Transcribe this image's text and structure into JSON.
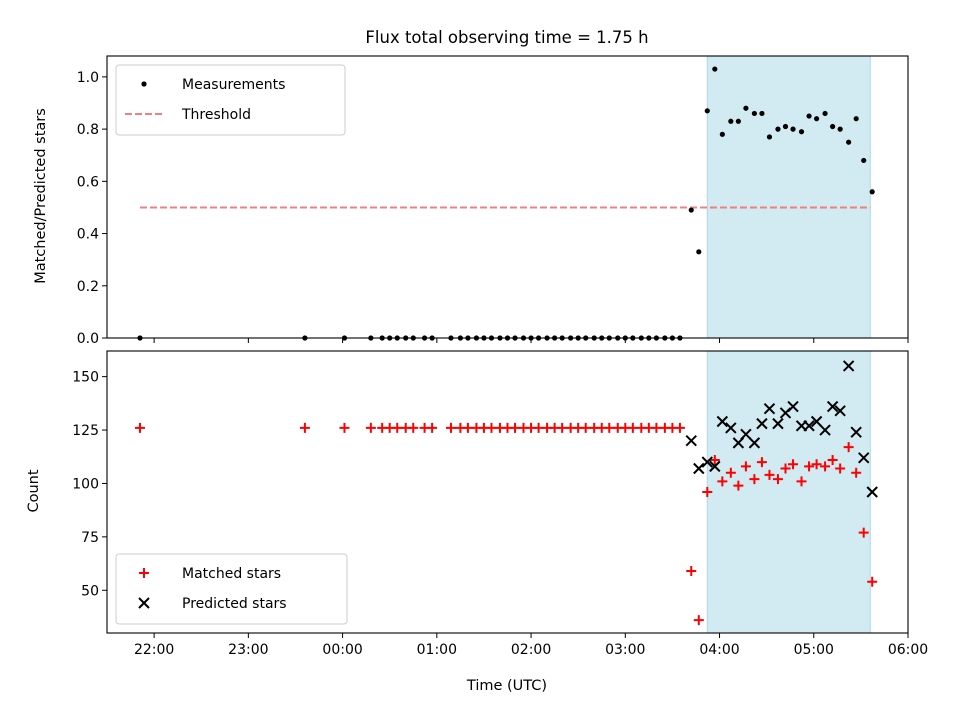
{
  "chart_data": {
    "title": "Flux total observing time = 1.75 h",
    "x_axis": {
      "label": "Time (UTC)",
      "range_hours": [
        -2.5,
        6.0
      ],
      "ticks": [
        {
          "value": -2,
          "label": "22:00"
        },
        {
          "value": -1,
          "label": "23:00"
        },
        {
          "value": 0,
          "label": "00:00"
        },
        {
          "value": 1,
          "label": "01:00"
        },
        {
          "value": 2,
          "label": "02:00"
        },
        {
          "value": 3,
          "label": "03:00"
        },
        {
          "value": 4,
          "label": "04:00"
        },
        {
          "value": 5,
          "label": "05:00"
        },
        {
          "value": 6,
          "label": "06:00"
        }
      ]
    },
    "observing_window": {
      "start": 3.87,
      "end": 5.6,
      "color": "#add8e6"
    },
    "panels": [
      {
        "type": "scatter",
        "ylabel": "Matched/Predicted stars",
        "ylim": [
          0,
          1.08
        ],
        "yticks": [
          0.0,
          0.2,
          0.4,
          0.6,
          0.8,
          1.0
        ],
        "ytick_labels": [
          "0.0",
          "0.2",
          "0.4",
          "0.6",
          "0.8",
          "1.0"
        ],
        "legend": {
          "placement": "top-left",
          "entries": [
            "Measurements",
            "Threshold"
          ]
        },
        "threshold": {
          "name": "Threshold",
          "value": 0.5,
          "x_range": [
            -2.15,
            5.6
          ],
          "color": "#f08080"
        },
        "series": [
          {
            "name": "Measurements",
            "color": "#000000",
            "marker": "dot",
            "points": [
              [
                -2.15,
                0.0
              ],
              [
                -0.4,
                0.0
              ],
              [
                0.02,
                0.0
              ],
              [
                0.3,
                0.0
              ],
              [
                0.42,
                0.0
              ],
              [
                0.5,
                0.0
              ],
              [
                0.58,
                0.0
              ],
              [
                0.67,
                0.0
              ],
              [
                0.75,
                0.0
              ],
              [
                0.87,
                0.0
              ],
              [
                0.95,
                0.0
              ],
              [
                1.15,
                0.0
              ],
              [
                1.25,
                0.0
              ],
              [
                1.33,
                0.0
              ],
              [
                1.42,
                0.0
              ],
              [
                1.5,
                0.0
              ],
              [
                1.58,
                0.0
              ],
              [
                1.67,
                0.0
              ],
              [
                1.75,
                0.0
              ],
              [
                1.83,
                0.0
              ],
              [
                1.92,
                0.0
              ],
              [
                2.0,
                0.0
              ],
              [
                2.08,
                0.0
              ],
              [
                2.17,
                0.0
              ],
              [
                2.25,
                0.0
              ],
              [
                2.33,
                0.0
              ],
              [
                2.42,
                0.0
              ],
              [
                2.5,
                0.0
              ],
              [
                2.58,
                0.0
              ],
              [
                2.67,
                0.0
              ],
              [
                2.75,
                0.0
              ],
              [
                2.83,
                0.0
              ],
              [
                2.92,
                0.0
              ],
              [
                3.0,
                0.0
              ],
              [
                3.08,
                0.0
              ],
              [
                3.17,
                0.0
              ],
              [
                3.25,
                0.0
              ],
              [
                3.33,
                0.0
              ],
              [
                3.42,
                0.0
              ],
              [
                3.5,
                0.0
              ],
              [
                3.58,
                0.0
              ],
              [
                3.7,
                0.49
              ],
              [
                3.78,
                0.33
              ],
              [
                3.87,
                0.87
              ],
              [
                3.95,
                1.03
              ],
              [
                4.03,
                0.78
              ],
              [
                4.12,
                0.83
              ],
              [
                4.2,
                0.83
              ],
              [
                4.28,
                0.88
              ],
              [
                4.37,
                0.86
              ],
              [
                4.45,
                0.86
              ],
              [
                4.53,
                0.77
              ],
              [
                4.62,
                0.8
              ],
              [
                4.7,
                0.81
              ],
              [
                4.78,
                0.8
              ],
              [
                4.87,
                0.79
              ],
              [
                4.95,
                0.85
              ],
              [
                5.03,
                0.84
              ],
              [
                5.12,
                0.86
              ],
              [
                5.2,
                0.81
              ],
              [
                5.28,
                0.8
              ],
              [
                5.37,
                0.75
              ],
              [
                5.45,
                0.84
              ],
              [
                5.53,
                0.68
              ],
              [
                5.62,
                0.56
              ]
            ]
          }
        ]
      },
      {
        "type": "scatter",
        "ylabel": "Count",
        "ylim": [
          30,
          162
        ],
        "yticks": [
          50,
          75,
          100,
          125,
          150
        ],
        "ytick_labels": [
          "50",
          "75",
          "100",
          "125",
          "150"
        ],
        "legend": {
          "placement": "bottom-left",
          "entries": [
            "Matched stars",
            "Predicted stars"
          ]
        },
        "series": [
          {
            "name": "Matched stars",
            "color": "#ff0000",
            "marker": "plus",
            "points": [
              [
                -2.15,
                126
              ],
              [
                -0.4,
                126
              ],
              [
                0.02,
                126
              ],
              [
                0.3,
                126
              ],
              [
                0.42,
                126
              ],
              [
                0.5,
                126
              ],
              [
                0.58,
                126
              ],
              [
                0.67,
                126
              ],
              [
                0.75,
                126
              ],
              [
                0.87,
                126
              ],
              [
                0.95,
                126
              ],
              [
                1.15,
                126
              ],
              [
                1.25,
                126
              ],
              [
                1.33,
                126
              ],
              [
                1.42,
                126
              ],
              [
                1.5,
                126
              ],
              [
                1.58,
                126
              ],
              [
                1.67,
                126
              ],
              [
                1.75,
                126
              ],
              [
                1.83,
                126
              ],
              [
                1.92,
                126
              ],
              [
                2.0,
                126
              ],
              [
                2.08,
                126
              ],
              [
                2.17,
                126
              ],
              [
                2.25,
                126
              ],
              [
                2.33,
                126
              ],
              [
                2.42,
                126
              ],
              [
                2.5,
                126
              ],
              [
                2.58,
                126
              ],
              [
                2.67,
                126
              ],
              [
                2.75,
                126
              ],
              [
                2.83,
                126
              ],
              [
                2.92,
                126
              ],
              [
                3.0,
                126
              ],
              [
                3.08,
                126
              ],
              [
                3.17,
                126
              ],
              [
                3.25,
                126
              ],
              [
                3.33,
                126
              ],
              [
                3.42,
                126
              ],
              [
                3.5,
                126
              ],
              [
                3.58,
                126
              ],
              [
                3.7,
                59
              ],
              [
                3.78,
                36
              ],
              [
                3.87,
                96
              ],
              [
                3.95,
                111
              ],
              [
                4.03,
                101
              ],
              [
                4.12,
                105
              ],
              [
                4.2,
                99
              ],
              [
                4.28,
                108
              ],
              [
                4.37,
                102
              ],
              [
                4.45,
                110
              ],
              [
                4.53,
                104
              ],
              [
                4.62,
                102
              ],
              [
                4.7,
                107
              ],
              [
                4.78,
                109
              ],
              [
                4.87,
                101
              ],
              [
                4.95,
                108
              ],
              [
                5.03,
                109
              ],
              [
                5.12,
                108
              ],
              [
                5.2,
                111
              ],
              [
                5.28,
                107
              ],
              [
                5.37,
                117
              ],
              [
                5.45,
                105
              ],
              [
                5.53,
                77
              ],
              [
                5.62,
                54
              ]
            ]
          },
          {
            "name": "Predicted stars",
            "color": "#000000",
            "marker": "x",
            "points": [
              [
                3.7,
                120
              ],
              [
                3.78,
                107
              ],
              [
                3.87,
                110
              ],
              [
                3.95,
                108
              ],
              [
                4.03,
                129
              ],
              [
                4.12,
                126
              ],
              [
                4.2,
                119
              ],
              [
                4.28,
                123
              ],
              [
                4.37,
                119
              ],
              [
                4.45,
                128
              ],
              [
                4.53,
                135
              ],
              [
                4.62,
                128
              ],
              [
                4.7,
                133
              ],
              [
                4.78,
                136
              ],
              [
                4.87,
                127
              ],
              [
                4.95,
                127
              ],
              [
                5.03,
                129
              ],
              [
                5.12,
                125
              ],
              [
                5.2,
                136
              ],
              [
                5.28,
                134
              ],
              [
                5.37,
                155
              ],
              [
                5.45,
                124
              ],
              [
                5.53,
                112
              ],
              [
                5.62,
                96
              ]
            ]
          }
        ]
      }
    ]
  }
}
